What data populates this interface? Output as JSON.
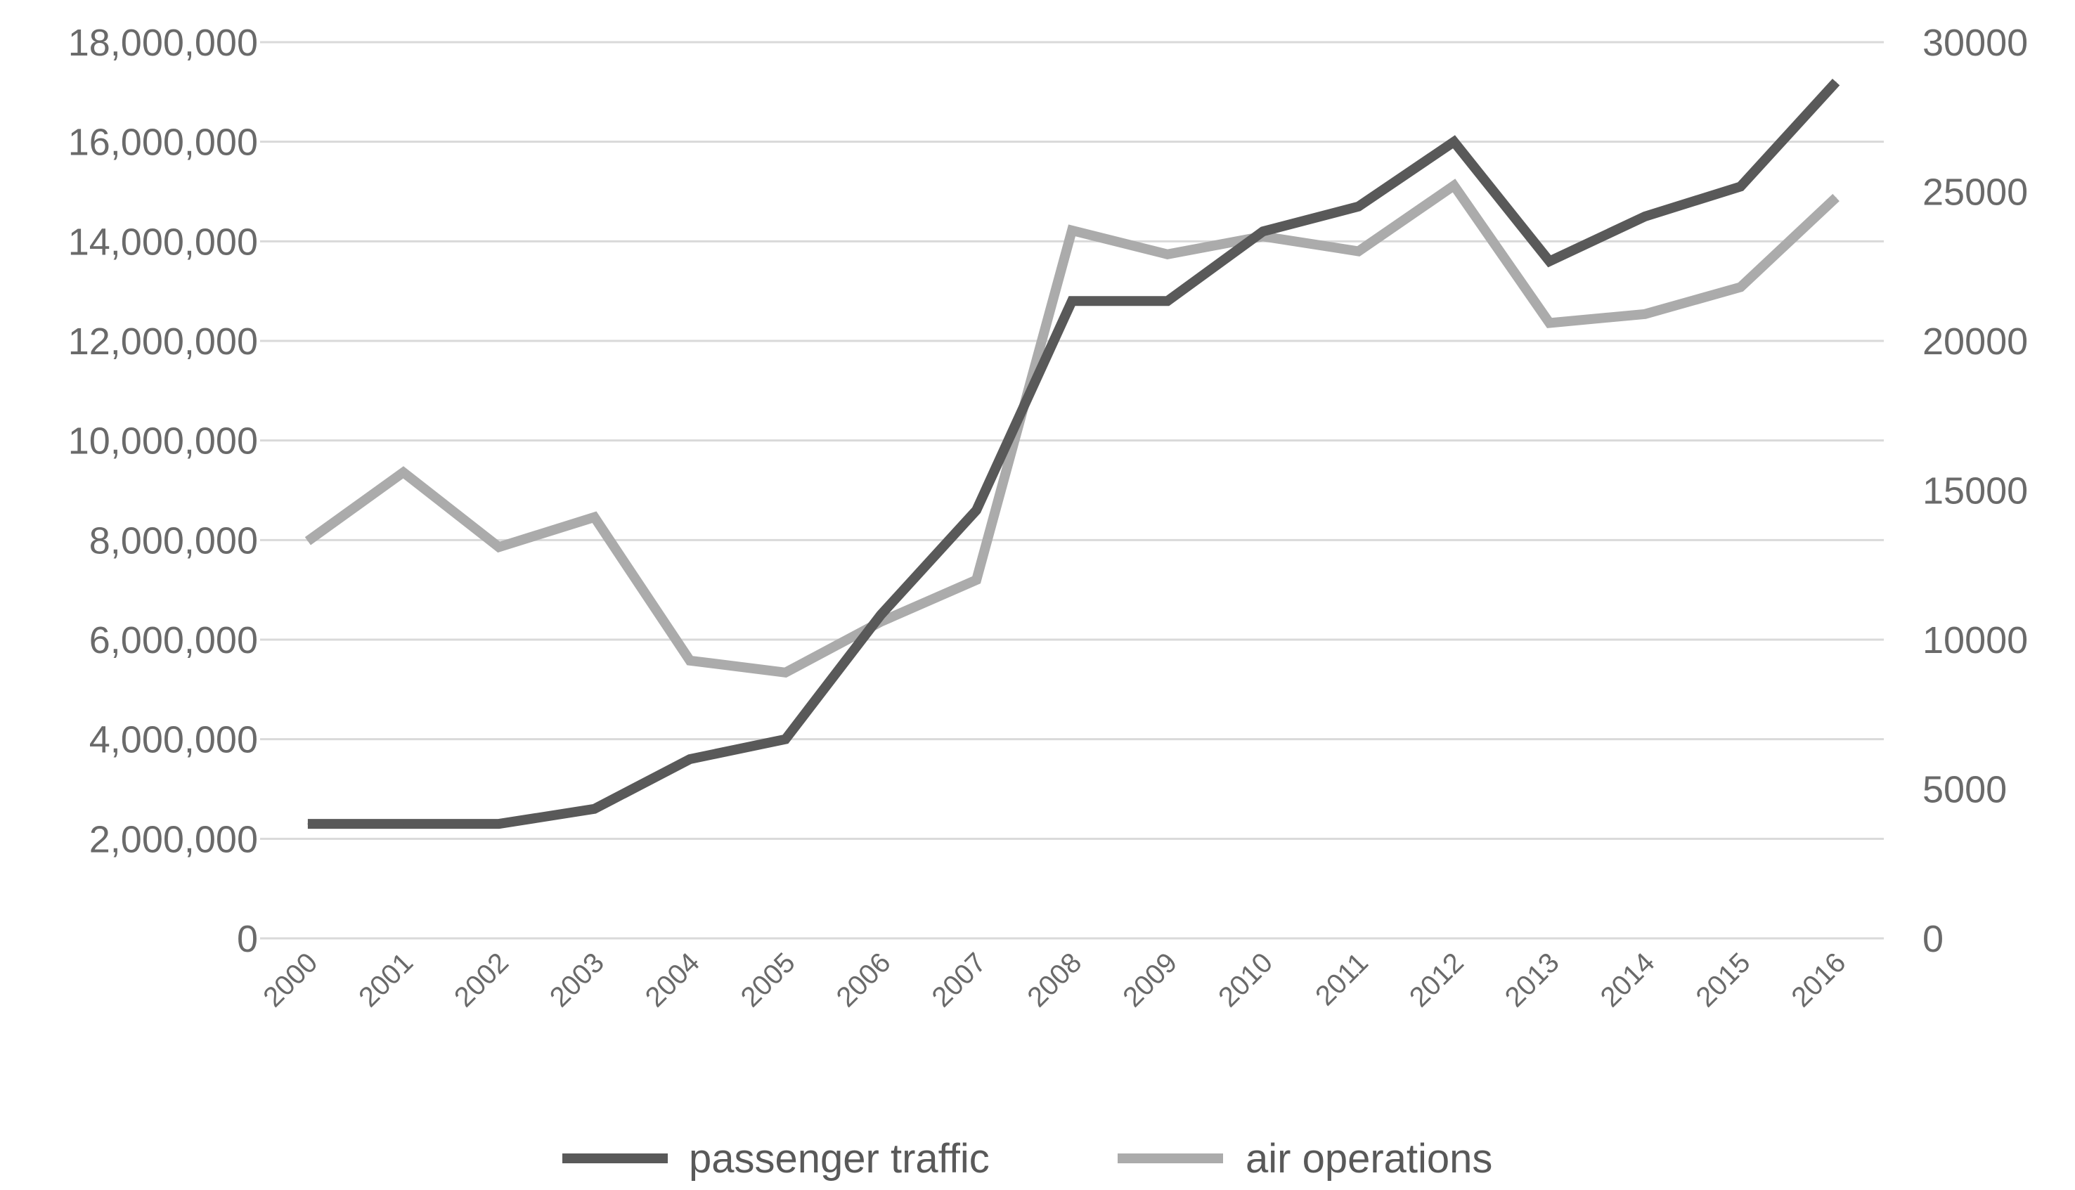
{
  "chart_data": {
    "type": "line",
    "title": "",
    "xlabel": "",
    "ylabel": "",
    "y2label": "",
    "grid": true,
    "legend_position": "bottom",
    "categories": [
      "2000",
      "2001",
      "2002",
      "2003",
      "2004",
      "2005",
      "2006",
      "2007",
      "2008",
      "2009",
      "2010",
      "2011",
      "2012",
      "2013",
      "2014",
      "2015",
      "2016"
    ],
    "ylim": [
      0,
      18000000
    ],
    "y_ticks": [
      "0",
      "2,000,000",
      "4,000,000",
      "6,000,000",
      "8,000,000",
      "10,000,000",
      "12,000,000",
      "14,000,000",
      "16,000,000",
      "18,000,000"
    ],
    "y2lim": [
      0,
      30000
    ],
    "y2_ticks": [
      "0",
      "5000",
      "10000",
      "15000",
      "20000",
      "25000",
      "30000"
    ],
    "series": [
      {
        "name": "passenger traffic",
        "axis": "left",
        "color": "#595959",
        "values": [
          2300000,
          2300000,
          2300000,
          2600000,
          3600000,
          4000000,
          6500000,
          8600000,
          12800000,
          12800000,
          14200000,
          14700000,
          16000000,
          13600000,
          14500000,
          15100000,
          17200000
        ]
      },
      {
        "name": "air operations",
        "axis": "right",
        "color": "#ababab",
        "values": [
          13300,
          15600,
          13100,
          14100,
          9300,
          8900,
          10600,
          12000,
          23700,
          22900,
          23500,
          23000,
          25200,
          20600,
          20900,
          21800,
          24800
        ]
      }
    ]
  }
}
